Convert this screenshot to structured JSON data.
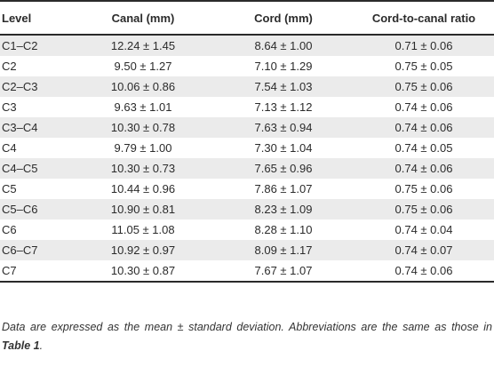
{
  "table": {
    "headers": [
      "Level",
      "Canal (mm)",
      "Cord (mm)",
      "Cord-to-canal ratio"
    ],
    "rows": [
      [
        "C1–C2",
        "12.24 ± 1.45",
        "8.64 ± 1.00",
        "0.71 ± 0.06"
      ],
      [
        "C2",
        "9.50 ± 1.27",
        "7.10 ± 1.29",
        "0.75 ± 0.05"
      ],
      [
        "C2–C3",
        "10.06 ± 0.86",
        "7.54 ± 1.03",
        "0.75 ± 0.06"
      ],
      [
        "C3",
        "9.63 ± 1.01",
        "7.13 ± 1.12",
        "0.74 ± 0.06"
      ],
      [
        "C3–C4",
        "10.30 ± 0.78",
        "7.63 ± 0.94",
        "0.74 ± 0.06"
      ],
      [
        "C4",
        "9.79 ± 1.00",
        "7.30 ± 1.04",
        "0.74 ± 0.05"
      ],
      [
        "C4–C5",
        "10.30 ± 0.73",
        "7.65 ± 0.96",
        "0.74 ± 0.06"
      ],
      [
        "C5",
        "10.44 ± 0.96",
        "7.86 ± 1.07",
        "0.75 ± 0.06"
      ],
      [
        "C5–C6",
        "10.90 ± 0.81",
        "8.23 ± 1.09",
        "0.75 ± 0.06"
      ],
      [
        "C6",
        "11.05 ± 1.08",
        "8.28 ± 1.10",
        "0.74 ± 0.04"
      ],
      [
        "C6–C7",
        "10.92 ± 0.97",
        "8.09 ± 1.17",
        "0.74 ± 0.07"
      ],
      [
        "C7",
        "10.30 ± 0.87",
        "7.67 ± 1.07",
        "0.74 ± 0.06"
      ]
    ]
  },
  "footnote": {
    "text_before": "Data are expressed as the mean ± standard deviation. Abbreviations are the same as those in ",
    "ref": "Table 1",
    "text_after": "."
  }
}
